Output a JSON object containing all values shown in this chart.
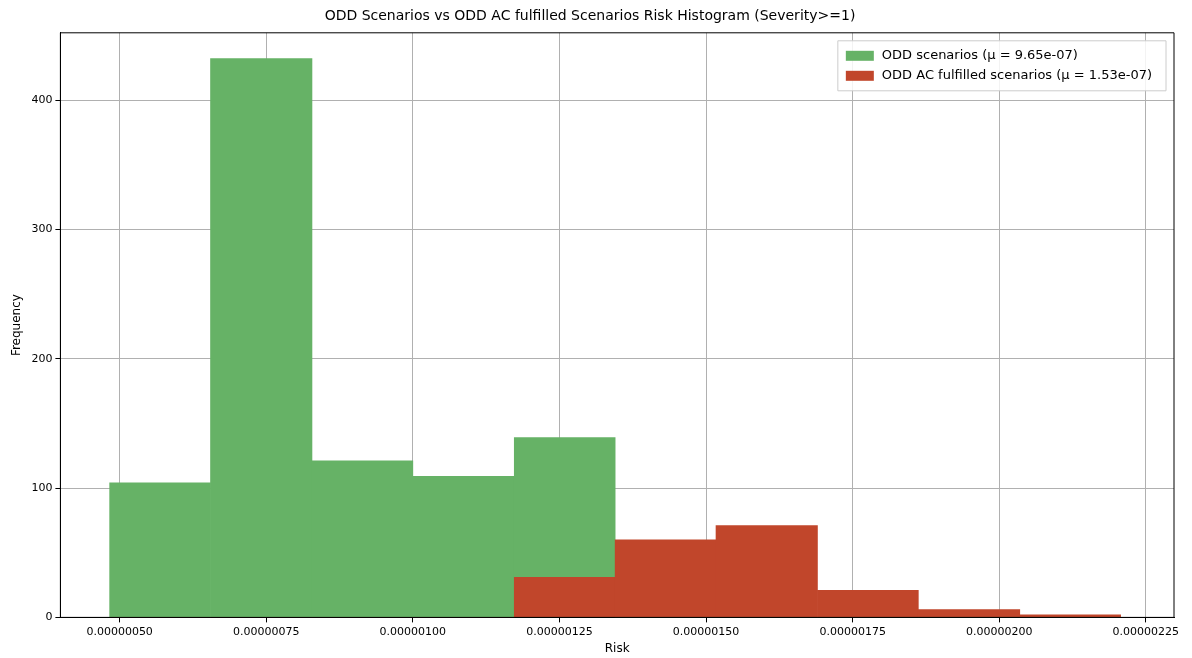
{
  "chart_data": {
    "type": "histogram",
    "title": "ODD Scenarios vs ODD AC fulfilled Scenarios Risk Histogram (Severity>=1)",
    "xlabel": "Risk",
    "ylabel": "Frequency",
    "bins": [
      4.83e-07,
      6.55e-07,
      8.28e-07,
      1e-06,
      1.173e-06,
      1.345e-06,
      1.517e-06,
      1.69e-06,
      1.862e-06,
      2.035e-06,
      2.207e-06
    ],
    "series": [
      {
        "name": "ODD scenarios (μ = 9.65e-07)",
        "color": "#66b266",
        "values": [
          104,
          432,
          121,
          109,
          139,
          0,
          0,
          0,
          0,
          0
        ]
      },
      {
        "name": "ODD AC fulfilled scenarios (μ = 1.53e-07)",
        "color": "#c1462b",
        "values": [
          0,
          0,
          0,
          0,
          31,
          60,
          71,
          21,
          6,
          2
        ]
      }
    ],
    "xlim": [
      3.99e-07,
      2.298e-06
    ],
    "xticks": [
      {
        "value": 5e-07,
        "label": "0.00000050"
      },
      {
        "value": 7.5e-07,
        "label": "0.00000075"
      },
      {
        "value": 1e-06,
        "label": "0.00000100"
      },
      {
        "value": 1.25e-06,
        "label": "0.00000125"
      },
      {
        "value": 1.5e-06,
        "label": "0.00000150"
      },
      {
        "value": 1.75e-06,
        "label": "0.00000175"
      },
      {
        "value": 2e-06,
        "label": "0.00000200"
      },
      {
        "value": 2.25e-06,
        "label": "0.00000225"
      }
    ],
    "ylim": [
      0,
      452
    ],
    "yticks": [
      0,
      100,
      200,
      300,
      400
    ],
    "grid": true,
    "legend": "top right"
  }
}
